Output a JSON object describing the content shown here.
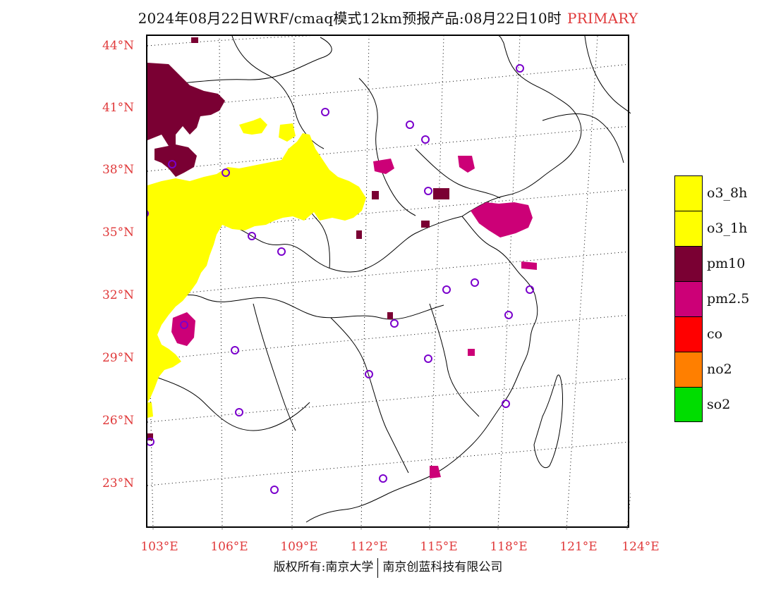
{
  "title": {
    "main": "2024年08月22日WRF/cmaq模式12km预报产品:08月22日10时",
    "tag": "PRIMARY"
  },
  "map": {
    "lat_labels": [
      "44°N",
      "41°N",
      "38°N",
      "35°N",
      "32°N",
      "29°N",
      "26°N",
      "23°N"
    ],
    "lon_labels": [
      "103°E",
      "106°E",
      "109°E",
      "112°E",
      "115°E",
      "118°E",
      "121°E",
      "124°E"
    ]
  },
  "legend": [
    {
      "label": "o3_8h",
      "color": "#ffff00"
    },
    {
      "label": "o3_1h",
      "color": "#ffff00"
    },
    {
      "label": "pm10",
      "color": "#7a0033"
    },
    {
      "label": "pm2.5",
      "color": "#cc0077"
    },
    {
      "label": "co",
      "color": "#ff0000"
    },
    {
      "label": "no2",
      "color": "#ff7f00"
    },
    {
      "label": "so2",
      "color": "#00dd00"
    }
  ],
  "footer": {
    "left": "版权所有:南京大学",
    "right": "南京创蓝科技有限公司"
  },
  "colors": {
    "accent": "#e0393a",
    "o3": "#ffff00",
    "pm10": "#7a0033",
    "pm25": "#cc0077",
    "station": "#7a00cc"
  }
}
